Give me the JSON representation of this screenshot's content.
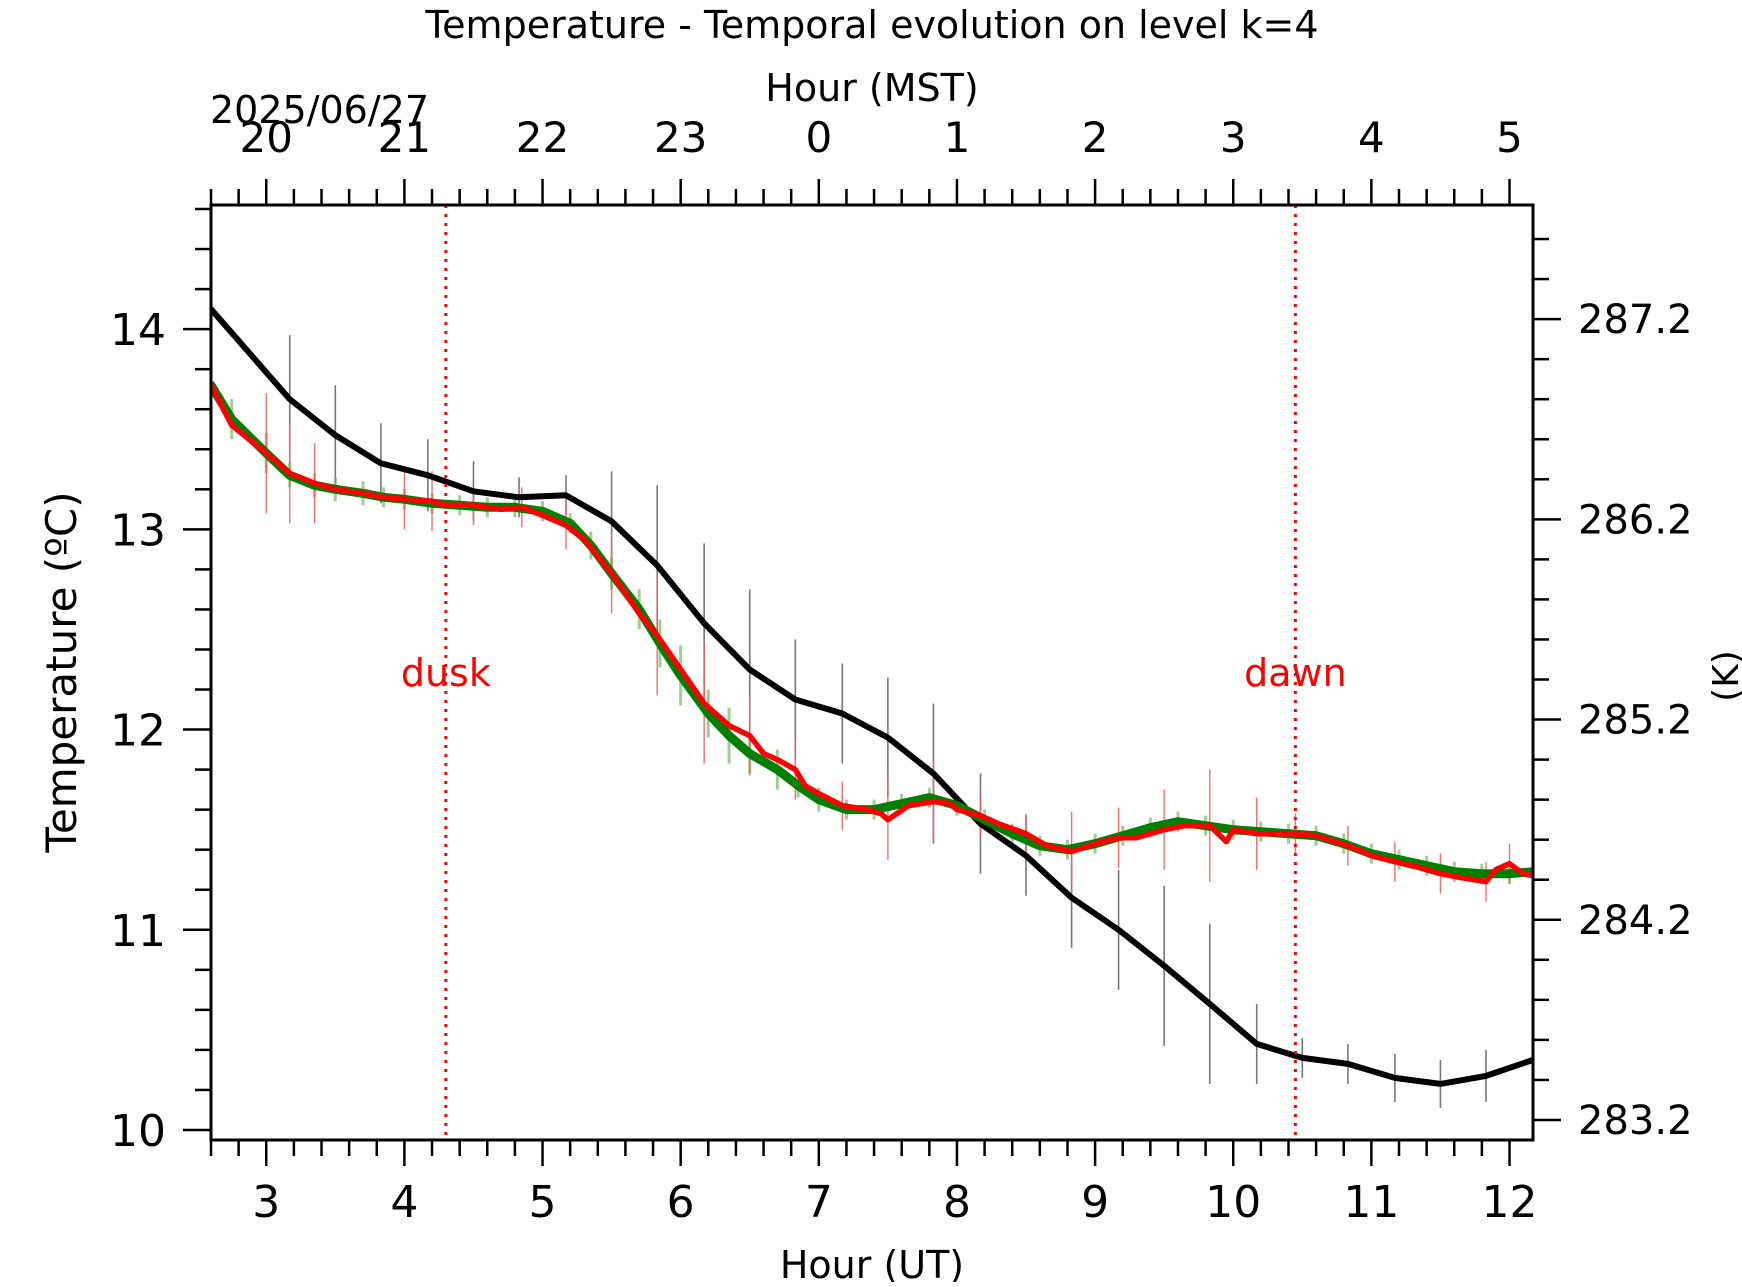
{
  "chart_data": {
    "type": "line",
    "title": "Temperature - Temporal evolution on level k=4",
    "xlabel": "Hour (UT)",
    "x2label": "Hour (MST)",
    "date_label": "2025/06/27",
    "ylabel": "Temperature (ºC)",
    "y2label": "(K)",
    "xlim": [
      2.6,
      12.17
    ],
    "ylim": [
      9.95,
      14.62
    ],
    "x_ticks": [
      "3",
      "4",
      "5",
      "6",
      "7",
      "8",
      "9",
      "10",
      "11",
      "12"
    ],
    "x_tick_values": [
      3,
      4,
      5,
      6,
      7,
      8,
      9,
      10,
      11,
      12
    ],
    "x2_ticks": [
      "20",
      "21",
      "22",
      "23",
      "0",
      "1",
      "2",
      "3",
      "4",
      "5"
    ],
    "y_ticks": [
      "10",
      "11",
      "12",
      "13",
      "14"
    ],
    "y_tick_values": [
      10,
      11,
      12,
      13,
      14
    ],
    "y2_ticks": [
      "283.2",
      "284.2",
      "285.2",
      "286.2",
      "287.2"
    ],
    "y2_tick_values": [
      10.05,
      11.05,
      12.05,
      13.05,
      14.05
    ],
    "annotations": [
      {
        "text": "dusk",
        "x": 4.3,
        "color": "#ff0000"
      },
      {
        "text": "dawn",
        "x": 10.45,
        "color": "#ff0000"
      }
    ],
    "series": [
      {
        "color": "#000000",
        "x": [
          2.6,
          3.17,
          3.5,
          3.83,
          4.17,
          4.5,
          4.83,
          5.17,
          5.5,
          5.83,
          6.17,
          6.5,
          6.83,
          7.17,
          7.5,
          7.83,
          8.17,
          8.5,
          8.83,
          9.17,
          9.5,
          9.83,
          10.17,
          10.5,
          10.83,
          11.17,
          11.5,
          11.83,
          12.17
        ],
        "y": [
          14.1,
          13.65,
          13.47,
          13.33,
          13.27,
          13.19,
          13.16,
          13.17,
          13.04,
          12.82,
          12.53,
          12.3,
          12.15,
          12.08,
          11.96,
          11.78,
          11.53,
          11.37,
          11.16,
          11.0,
          10.82,
          10.63,
          10.43,
          10.36,
          10.33,
          10.26,
          10.23,
          10.27,
          10.35
        ],
        "error_bars": [
          0.4,
          0.32,
          0.25,
          0.2,
          0.18,
          0.15,
          0.1,
          0.1,
          0.25,
          0.4,
          0.4,
          0.4,
          0.3,
          0.25,
          0.3,
          0.35,
          0.25,
          0.2,
          0.25,
          0.3,
          0.4,
          0.4,
          0.2,
          0.1,
          0.1,
          0.12,
          0.12,
          0.13,
          0.1
        ]
      },
      {
        "color": "#008000",
        "x": [
          2.6,
          2.75,
          3.0,
          3.17,
          3.35,
          3.5,
          3.7,
          3.85,
          4.0,
          4.2,
          4.4,
          4.6,
          4.8,
          5.0,
          5.2,
          5.35,
          5.5,
          5.7,
          5.85,
          6.0,
          6.2,
          6.35,
          6.5,
          6.7,
          6.85,
          7.0,
          7.2,
          7.4,
          7.6,
          7.8,
          8.0,
          8.2,
          8.4,
          8.6,
          8.8,
          9.0,
          9.2,
          9.4,
          9.6,
          9.8,
          10.0,
          10.2,
          10.4,
          10.6,
          10.8,
          11.0,
          11.2,
          11.4,
          11.6,
          11.8,
          12.0,
          12.17
        ],
        "y": [
          13.72,
          13.55,
          13.38,
          13.27,
          13.22,
          13.2,
          13.18,
          13.16,
          13.15,
          13.13,
          13.12,
          13.11,
          13.11,
          13.09,
          13.03,
          12.92,
          12.78,
          12.6,
          12.43,
          12.27,
          12.08,
          11.97,
          11.88,
          11.8,
          11.72,
          11.65,
          11.6,
          11.6,
          11.63,
          11.66,
          11.62,
          11.55,
          11.48,
          11.42,
          11.4,
          11.43,
          11.47,
          11.51,
          11.54,
          11.52,
          11.5,
          11.49,
          11.48,
          11.47,
          11.43,
          11.38,
          11.35,
          11.32,
          11.29,
          11.28,
          11.28,
          11.29
        ],
        "error_bars": [
          0.15,
          0.1,
          0.1,
          0.06,
          0.06,
          0.06,
          0.06,
          0.05,
          0.05,
          0.05,
          0.05,
          0.05,
          0.05,
          0.05,
          0.05,
          0.07,
          0.08,
          0.1,
          0.12,
          0.15,
          0.12,
          0.14,
          0.1,
          0.1,
          0.06,
          0.06,
          0.05,
          0.05,
          0.05,
          0.05,
          0.05,
          0.05,
          0.05,
          0.05,
          0.05,
          0.05,
          0.05,
          0.05,
          0.05,
          0.05,
          0.05,
          0.05,
          0.05,
          0.05,
          0.05,
          0.05,
          0.05,
          0.05,
          0.05,
          0.05,
          0.05,
          0.05
        ]
      },
      {
        "color": "#ff0000",
        "x": [
          2.6,
          2.75,
          3.0,
          3.17,
          3.35,
          3.5,
          3.7,
          3.85,
          4.0,
          4.2,
          4.3,
          4.5,
          4.7,
          4.85,
          5.0,
          5.17,
          5.3,
          5.5,
          5.7,
          5.83,
          6.0,
          6.17,
          6.35,
          6.5,
          6.6,
          6.7,
          6.83,
          6.9,
          7.0,
          7.17,
          7.35,
          7.45,
          7.5,
          7.65,
          7.83,
          7.95,
          8.0,
          8.17,
          8.3,
          8.5,
          8.65,
          8.83,
          9.0,
          9.17,
          9.3,
          9.5,
          9.65,
          9.83,
          9.95,
          10.0,
          10.17,
          10.3,
          10.45,
          10.6,
          10.83,
          11.0,
          11.17,
          11.35,
          11.5,
          11.65,
          11.83,
          11.9,
          12.0,
          12.1,
          12.17
        ],
        "y": [
          13.72,
          13.52,
          13.38,
          13.28,
          13.23,
          13.2,
          13.18,
          13.16,
          13.15,
          13.14,
          13.12,
          13.12,
          13.1,
          13.11,
          13.07,
          13.02,
          12.95,
          12.78,
          12.58,
          12.47,
          12.3,
          12.13,
          12.02,
          11.97,
          11.88,
          11.85,
          11.8,
          11.72,
          11.68,
          11.62,
          11.6,
          11.58,
          11.55,
          11.62,
          11.64,
          11.63,
          11.6,
          11.57,
          11.53,
          11.48,
          11.42,
          11.39,
          11.43,
          11.46,
          11.46,
          11.5,
          11.52,
          11.52,
          11.44,
          11.5,
          11.48,
          11.48,
          11.48,
          11.47,
          11.42,
          11.37,
          11.34,
          11.31,
          11.28,
          11.26,
          11.24,
          11.3,
          11.33,
          11.28,
          11.27
        ],
        "error_bars": [
          0,
          0,
          0.3,
          0.25,
          0.2,
          0,
          0,
          0,
          0.15,
          0.15,
          0,
          0.1,
          0,
          0.1,
          0,
          0.12,
          0,
          0.2,
          0,
          0.3,
          0,
          0.3,
          0,
          0.2,
          0,
          0,
          0.15,
          0,
          0,
          0.12,
          0,
          0,
          0.2,
          0,
          0.2,
          0,
          0,
          0.1,
          0,
          0.1,
          0,
          0.2,
          0,
          0.15,
          0,
          0.2,
          0,
          0.28,
          0,
          0,
          0.18,
          0,
          0.1,
          0,
          0.1,
          0,
          0.1,
          0,
          0.1,
          0,
          0.1,
          0,
          0.1,
          0,
          0
        ]
      }
    ]
  }
}
